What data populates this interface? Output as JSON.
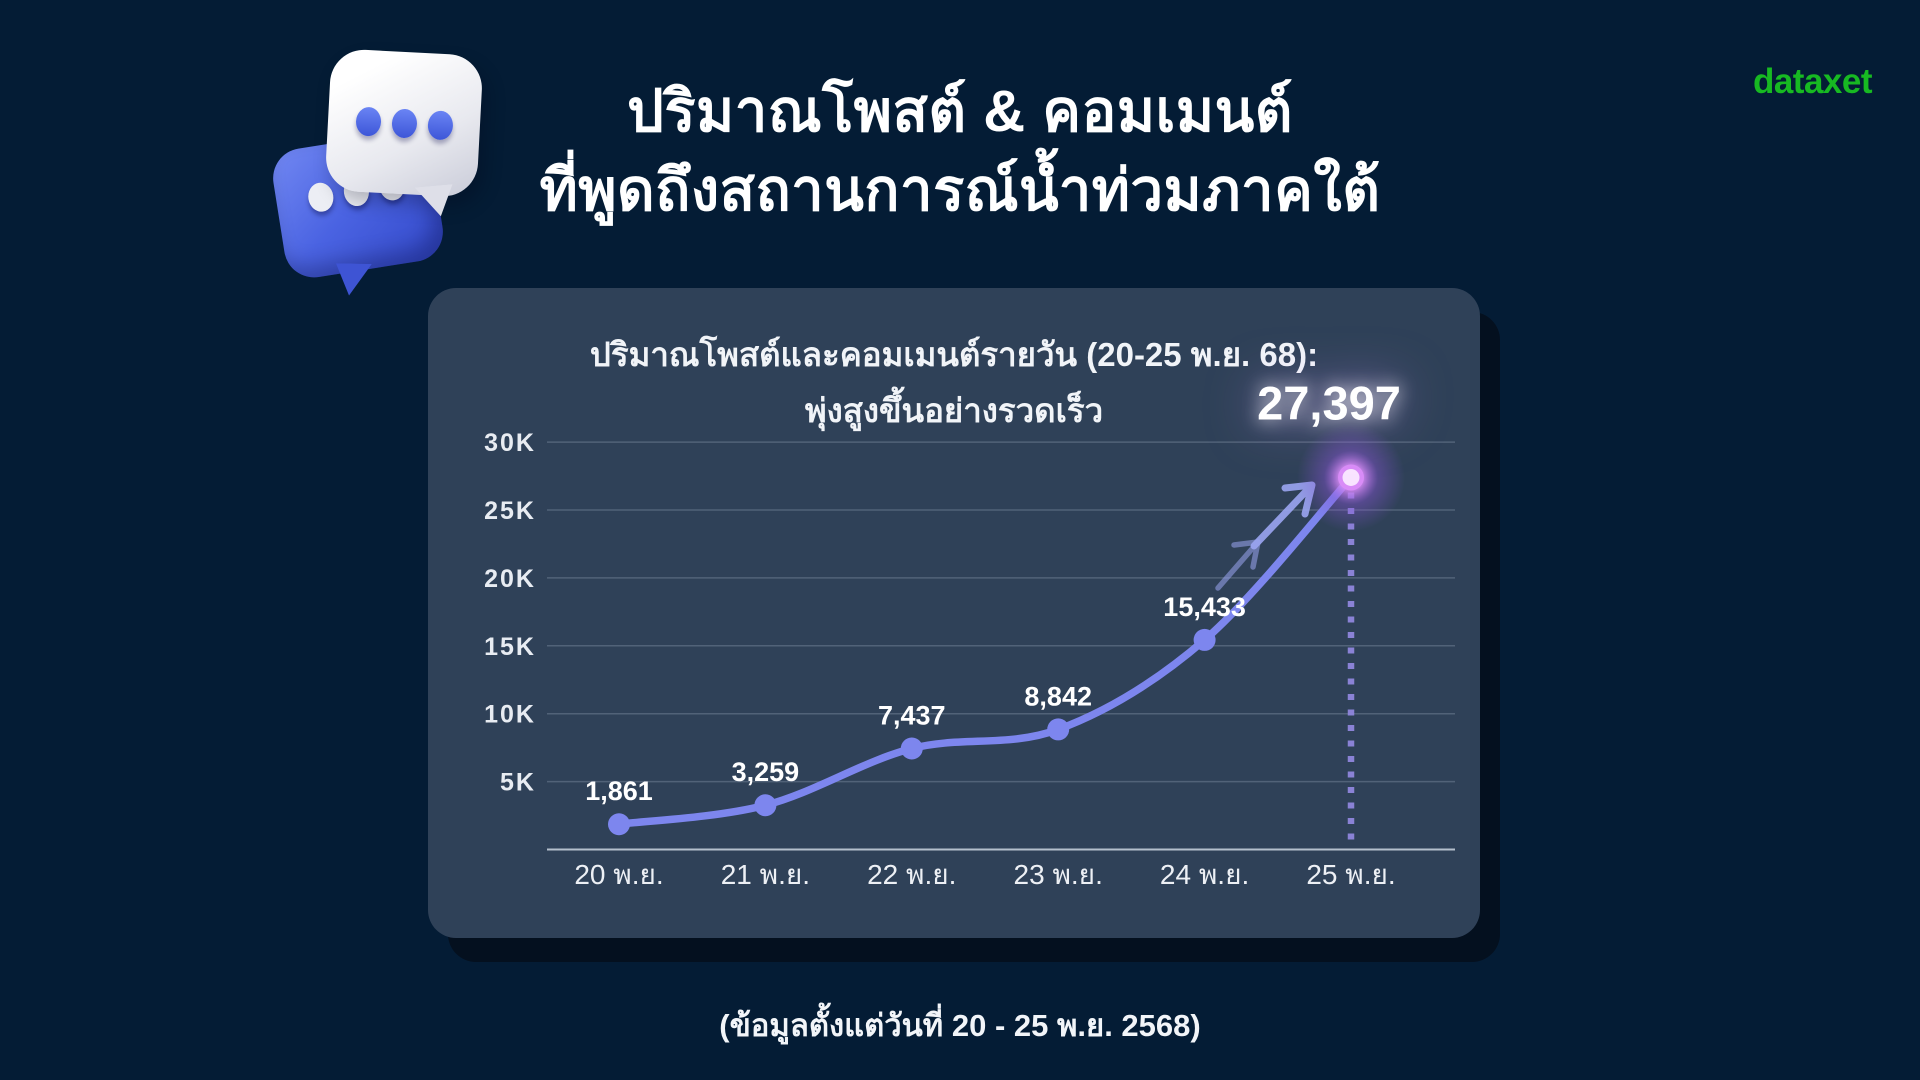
{
  "page": {
    "background": "#041C35"
  },
  "header": {
    "title_line1": "ปริมาณโพสต์ & คอมเมนต์",
    "title_line2": "ที่พูดถึงสถานการณ์น้ำท่วมภาคใต้",
    "icon": "chat-bubbles-3d-icon",
    "logo_text": "dataxet",
    "logo_color": "#17B922"
  },
  "chart_card": {
    "title_line1": "ปริมาณโพสต์และคอมเมนต์รายวัน (20-25 พ.ย. 68):",
    "title_line2": "พุ่งสูงขึ้นอย่างรวดเร็ว"
  },
  "chart_data": {
    "type": "line",
    "title": "ปริมาณโพสต์และคอมเมนต์รายวัน (20-25 พ.ย. 68): พุ่งสูงขึ้นอย่างรวดเร็ว",
    "categories": [
      "20 พ.ย.",
      "21 พ.ย.",
      "22 พ.ย.",
      "23 พ.ย.",
      "24 พ.ย.",
      "25 พ.ย."
    ],
    "values": [
      1861,
      3259,
      7437,
      8842,
      15433,
      27397
    ],
    "value_labels": [
      "1,861",
      "3,259",
      "7,437",
      "8,842",
      "15,433",
      "27,397"
    ],
    "highlight_index": 5,
    "ylim": [
      0,
      31000
    ],
    "yticks": {
      "values": [
        5000,
        10000,
        15000,
        20000,
        25000,
        30000
      ],
      "labels": [
        "5K",
        "10K",
        "15K",
        "20K",
        "25K",
        "30K"
      ]
    },
    "grid": true,
    "legend": "none",
    "annotations": [
      "growth-arrows-up-right",
      "dotted-drop-line-at-peak",
      "glow-on-peak-point"
    ],
    "colors": {
      "line": "#7D86EE",
      "point": "#7D86EE",
      "grid": "rgba(173,186,204,0.28)",
      "axis": "rgba(214,222,234,0.8)",
      "dotted_line": "#8F86DC",
      "arrow": "#9BA5F2",
      "glow_core": "#F9E4FF",
      "glow_mid": "#D98CF7",
      "glow_outer": "#8A55D8"
    }
  },
  "footer": {
    "note": "(ข้อมูลตั้งแต่วันที่ 20 - 25 พ.ย. 2568)"
  }
}
